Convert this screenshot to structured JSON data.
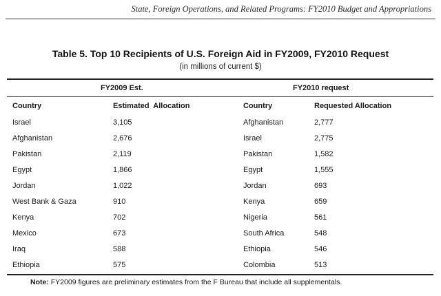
{
  "running_header": "State, Foreign Operations, and Related Programs: FY2010 Budget and Appropriations",
  "table": {
    "title": "Table 5. Top 10 Recipients of U.S. Foreign Aid in FY2009, FY2010 Request",
    "subtitle": "(in millions of current $)",
    "group_headers": {
      "fy2009": "FY2009 Est.",
      "fy2010": "FY2010 request"
    },
    "column_headers": {
      "country_2009": "Country",
      "allocation_2009": "Estimated  Allocation",
      "country_2010": "Country",
      "allocation_2010": "Requested Allocation"
    },
    "rows": [
      {
        "country_2009": "Israel",
        "allocation_2009": "3,105",
        "country_2010": "Afghanistan",
        "allocation_2010": "2,777"
      },
      {
        "country_2009": "Afghanistan",
        "allocation_2009": "2,676",
        "country_2010": "Israel",
        "allocation_2010": "2,775"
      },
      {
        "country_2009": "Pakistan",
        "allocation_2009": "2,119",
        "country_2010": "Pakistan",
        "allocation_2010": "1,582"
      },
      {
        "country_2009": "Egypt",
        "allocation_2009": "1,866",
        "country_2010": "Egypt",
        "allocation_2010": "1,555"
      },
      {
        "country_2009": "Jordan",
        "allocation_2009": "1,022",
        "country_2010": "Jordan",
        "allocation_2010": "693"
      },
      {
        "country_2009": "West Bank & Gaza",
        "allocation_2009": "910",
        "country_2010": "Kenya",
        "allocation_2010": "659"
      },
      {
        "country_2009": "Kenya",
        "allocation_2009": "702",
        "country_2010": "Nigeria",
        "allocation_2010": "561"
      },
      {
        "country_2009": "Mexico",
        "allocation_2009": "673",
        "country_2010": "South Africa",
        "allocation_2010": "548"
      },
      {
        "country_2009": "Iraq",
        "allocation_2009": "588",
        "country_2010": "Ethiopia",
        "allocation_2010": "546"
      },
      {
        "country_2009": "Ethiopia",
        "allocation_2009": "575",
        "country_2010": "Colombia",
        "allocation_2010": "513"
      }
    ]
  },
  "note": {
    "label": "Note:",
    "text": " FY2009 figures are preliminary estimates from the F Bureau that include all supplementals."
  }
}
